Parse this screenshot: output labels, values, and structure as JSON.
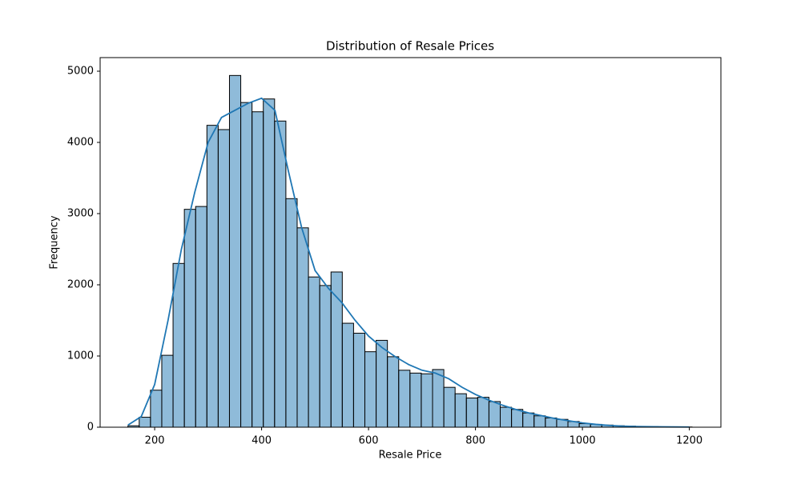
{
  "chart_data": {
    "type": "histogram",
    "title": "Distribution of Resale Prices",
    "x_label": "Resale Price",
    "y_label": "Frequency",
    "color": "#1f77b4",
    "bins": [
      150,
      171.1,
      192.2,
      213.3,
      234.4,
      255.5,
      276.6,
      297.7,
      318.8,
      339.9,
      361,
      382.1,
      403.2,
      424.3,
      445.4,
      466.5,
      487.6,
      508.7,
      529.8,
      550.9,
      572,
      593.1,
      614.2,
      635.3,
      656.4,
      677.5,
      698.6,
      719.7,
      740.8,
      761.9,
      783,
      804.1,
      825.2,
      846.3,
      867.4,
      888.5,
      909.6,
      930.7,
      951.8,
      972.9,
      994,
      1015.1,
      1036.2,
      1057.3,
      1078.4,
      1099.5,
      1120.6,
      1141.7,
      1162.8,
      1183.9,
      1205
    ],
    "values": [
      20,
      140,
      520,
      1010,
      2300,
      3060,
      3100,
      4240,
      4180,
      4940,
      4560,
      4430,
      4610,
      4300,
      3210,
      2800,
      2110,
      1990,
      2180,
      1460,
      1320,
      1060,
      1220,
      990,
      800,
      760,
      750,
      810,
      560,
      470,
      410,
      420,
      360,
      280,
      250,
      200,
      160,
      130,
      110,
      80,
      50,
      40,
      30,
      20,
      15,
      10,
      8,
      5,
      5,
      3
    ],
    "kde": {
      "color": "#1f77b4",
      "x": [
        150,
        175,
        200,
        225,
        250,
        275,
        300,
        325,
        350,
        375,
        400,
        425,
        450,
        475,
        500,
        525,
        550,
        575,
        600,
        625,
        650,
        675,
        700,
        725,
        750,
        775,
        800,
        825,
        850,
        875,
        900,
        925,
        950,
        975,
        1000,
        1025,
        1050,
        1075,
        1100,
        1150,
        1200
      ],
      "values": [
        30,
        150,
        600,
        1500,
        2500,
        3300,
        4000,
        4350,
        4450,
        4550,
        4620,
        4450,
        3600,
        2800,
        2200,
        1950,
        1750,
        1500,
        1280,
        1120,
        990,
        880,
        800,
        760,
        680,
        560,
        460,
        380,
        310,
        250,
        200,
        160,
        120,
        90,
        60,
        40,
        25,
        15,
        10,
        5,
        3
      ]
    },
    "xlim": [
      98,
      1259
    ],
    "ylim": [
      0,
      5191
    ],
    "xticks": [
      200,
      400,
      600,
      800,
      1000,
      1200
    ],
    "yticks": [
      0,
      1000,
      2000,
      3000,
      4000,
      5000
    ]
  }
}
